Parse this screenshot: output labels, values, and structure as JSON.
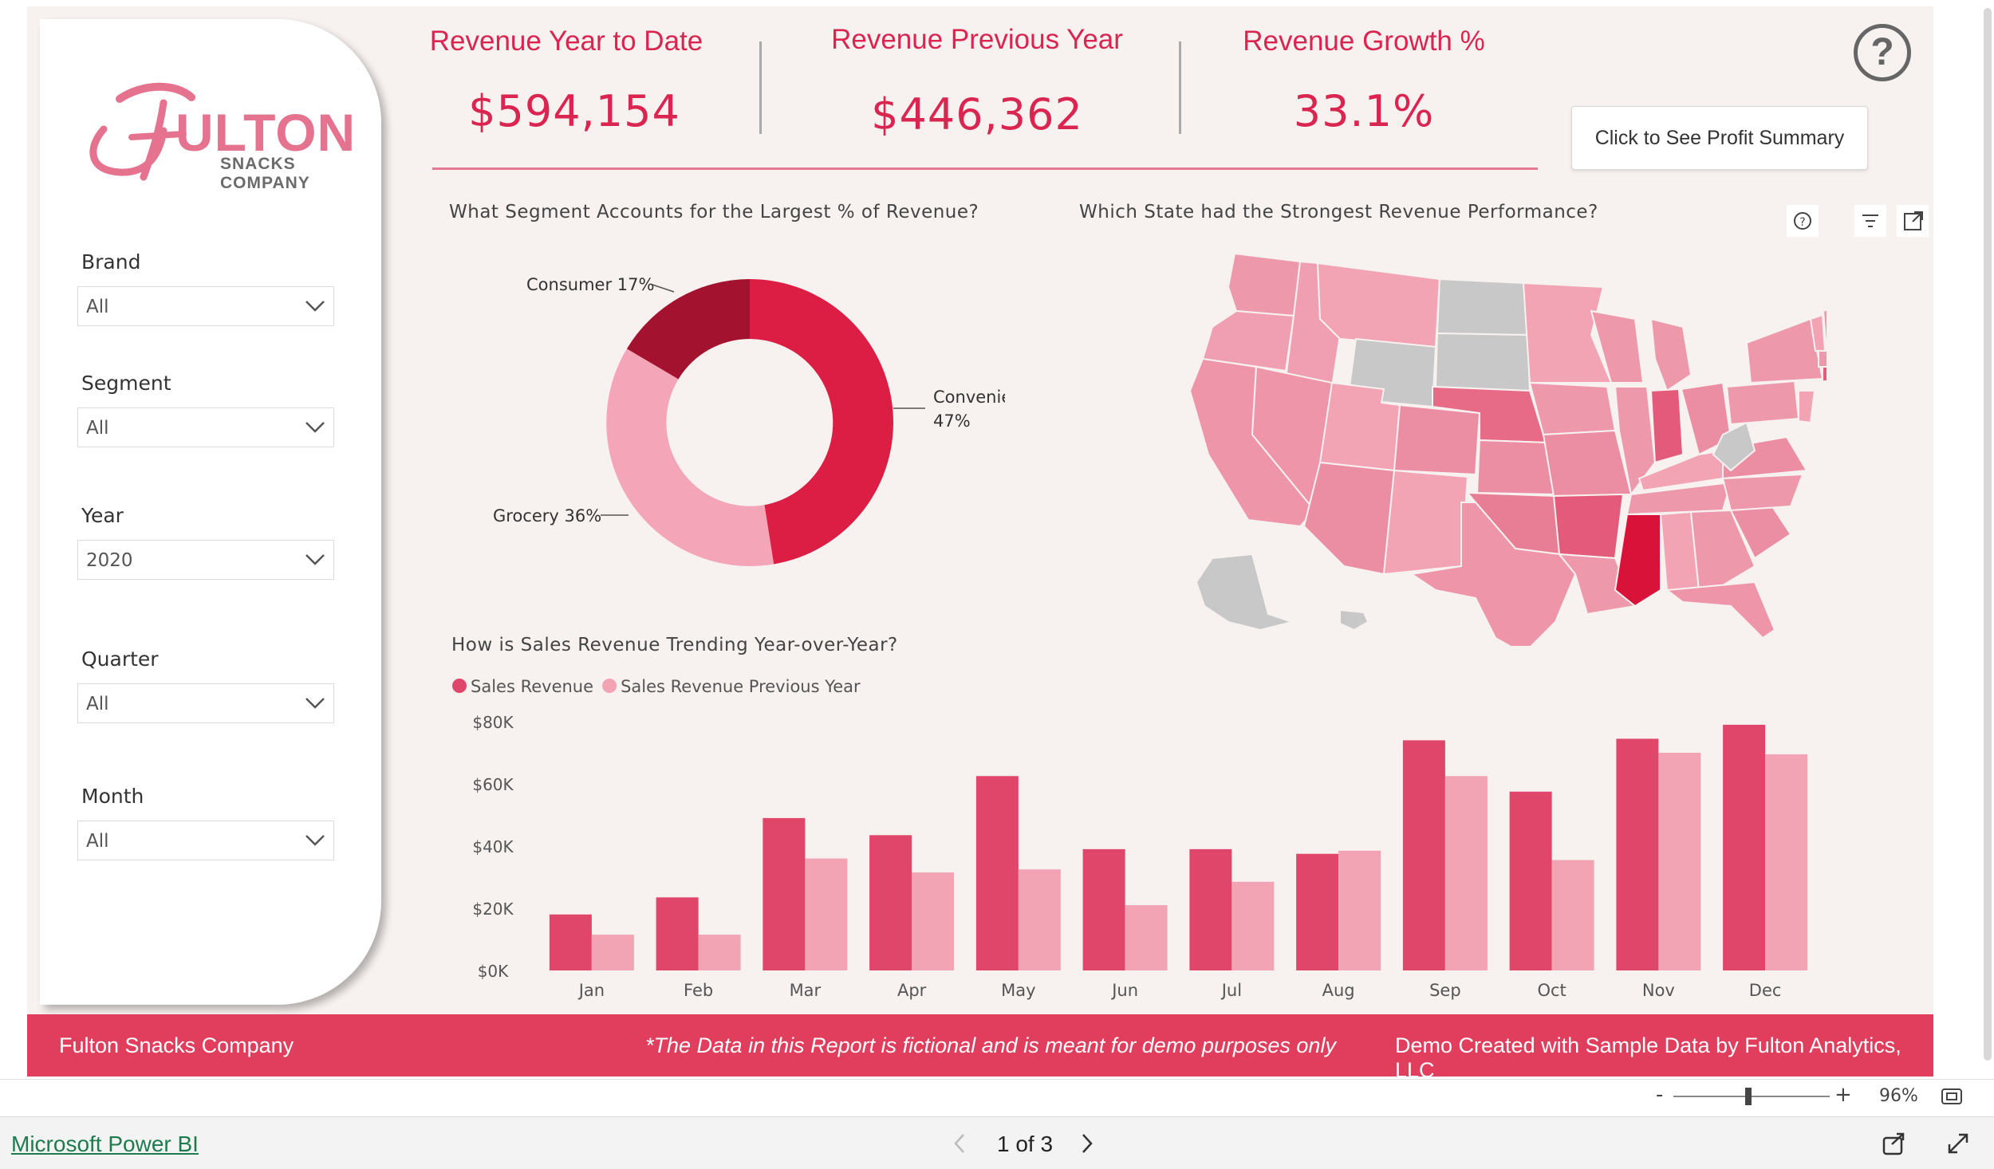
{
  "colors": {
    "accent": "#e03e5c",
    "kpi_text": "#d9254f",
    "sales_revenue": "#e0466a",
    "sales_revenue_prev": "#f2a3b4",
    "consumer": "#a3132f",
    "convenience": "#dc1d44",
    "grocery": "#f4a5b7",
    "map_base": "#ee98ab",
    "map_gray": "#c8c8c8",
    "map_top": "#d81238"
  },
  "logo": {
    "script_letter": "F",
    "word": "ULTON",
    "sub": "SNACKS COMPANY"
  },
  "slicers": [
    {
      "label": "Brand",
      "value": "All"
    },
    {
      "label": "Segment",
      "value": "All"
    },
    {
      "label": "Year",
      "value": "2020"
    },
    {
      "label": "Quarter",
      "value": "All"
    },
    {
      "label": "Month",
      "value": "All"
    }
  ],
  "kpis": [
    {
      "title": "Revenue Year to Date",
      "value": "$594,154"
    },
    {
      "title": "Revenue Previous Year",
      "value": "$446,362"
    },
    {
      "title": "Revenue Growth %",
      "value": "33.1%"
    }
  ],
  "help_icon": "question-circle-icon",
  "profit_button": "Click to See Profit Summary",
  "donut": {
    "title": "What Segment Accounts for the Largest % of Revenue?",
    "labels": {
      "consumer": "Consumer 17%",
      "convenience_name": "Convenience",
      "convenience_pct": "47%",
      "grocery": "Grocery 36%"
    }
  },
  "map": {
    "title": "Which State had the Strongest Revenue Performance?"
  },
  "visual_icons": [
    "help-icon",
    "filter-icon",
    "focus-mode-icon"
  ],
  "chart_data": {
    "type": "bar",
    "title": "How is Sales Revenue Trending Year-over-Year?",
    "categories": [
      "Jan",
      "Feb",
      "Mar",
      "Apr",
      "May",
      "Jun",
      "Jul",
      "Aug",
      "Sep",
      "Oct",
      "Nov",
      "Dec"
    ],
    "series": [
      {
        "name": "Sales Revenue",
        "values": [
          18000,
          23500,
          49000,
          43500,
          62500,
          39000,
          39000,
          37500,
          74000,
          57500,
          74500,
          79000
        ]
      },
      {
        "name": "Sales Revenue Previous Year",
        "values": [
          11500,
          11500,
          36000,
          31500,
          32500,
          21000,
          28500,
          38500,
          62500,
          35500,
          70000,
          69500
        ]
      }
    ],
    "ylim": [
      0,
      80000
    ],
    "y_ticks": [
      "$0K",
      "$20K",
      "$40K",
      "$60K",
      "$80K"
    ],
    "legend_position": "top-left",
    "grid": false
  },
  "footer": {
    "left": "Fulton Snacks Company",
    "center": "*The Data in this Report is fictional and is meant for demo purposes only",
    "right": "Demo Created with Sample Data by Fulton Analytics, LLC"
  },
  "zoom": {
    "value": "96%",
    "minus": "-",
    "plus": "+"
  },
  "bottom_bar": {
    "link": "Microsoft Power BI",
    "page": "1 of 3"
  }
}
